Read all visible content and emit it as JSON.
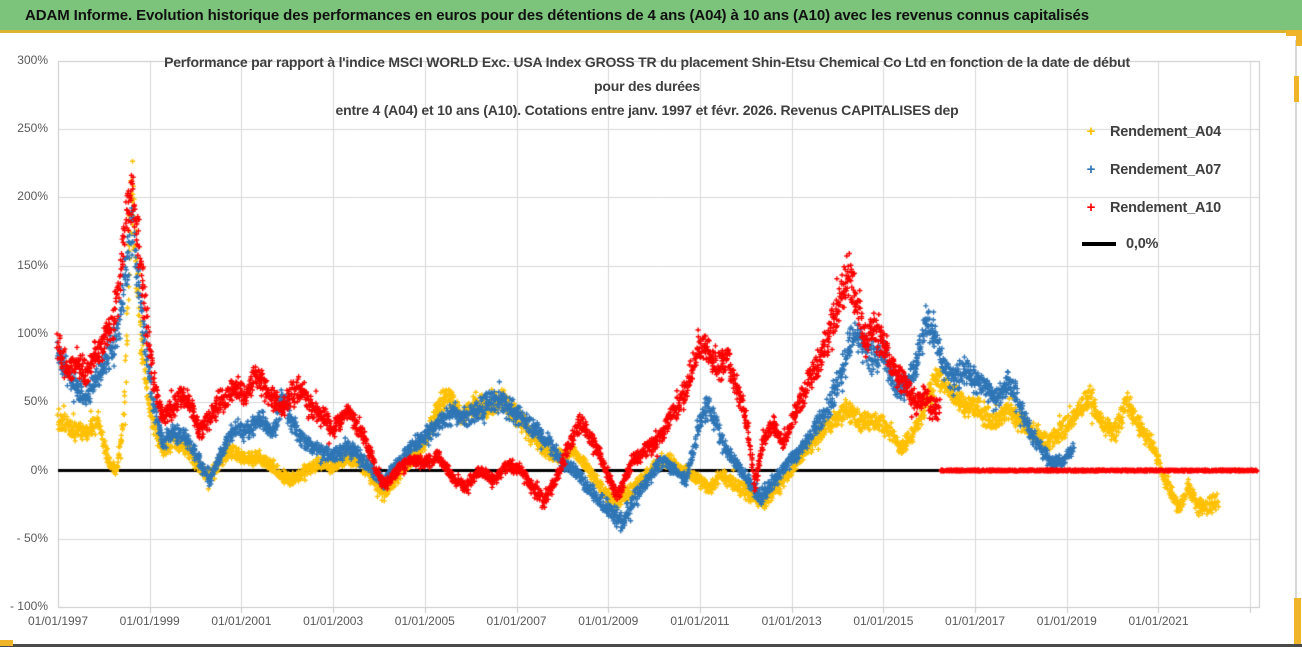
{
  "header": {
    "title": "ADAM Informe. Evolution historique des performances en euros pour des détentions de 4 ans (A04) à 10 ans (A10) avec les revenus connus capitalisés"
  },
  "chart_data": {
    "type": "scatter",
    "title_lines": [
      "Performance par rapport à l'indice MSCI WORLD Exc. USA Index GROSS TR  du placement Shin-Etsu Chemical Co Ltd en fonction de la date de début",
      "pour des durées",
      "entre 4 (A04) et 10 ans (A10). Cotations entre janv. 1997 et févr. 2026. Revenus CAPITALISES dep"
    ],
    "legend": [
      {
        "label": "Rendement_A04",
        "marker": "+",
        "color": "#FFC000"
      },
      {
        "label": "Rendement_A07",
        "marker": "+",
        "color": "#2E75B6"
      },
      {
        "label": "Rendement_A10",
        "marker": "+",
        "color": "#FF0000"
      },
      {
        "label": "0,0%",
        "marker": "line",
        "color": "#000000"
      }
    ],
    "x_axis": {
      "tick_labels": [
        "01/01/1997",
        "01/01/1999",
        "01/01/2001",
        "01/01/2003",
        "01/01/2005",
        "01/01/2007",
        "01/01/2009",
        "01/01/2011",
        "01/01/2013",
        "01/01/2015",
        "01/01/2017",
        "01/01/2019",
        "01/01/2021"
      ],
      "tick_years": [
        1997,
        1999,
        2001,
        2003,
        2005,
        2007,
        2009,
        2011,
        2013,
        2015,
        2017,
        2019,
        2021
      ],
      "range_years": [
        1997.0,
        2023.2
      ],
      "gridlines_every_years": 2
    },
    "y_axis": {
      "tick_labels": [
        "300%",
        "250%",
        "200%",
        "150%",
        "100%",
        "50%",
        "0%",
        "- 50%",
        "- 100%"
      ],
      "tick_values": [
        300,
        250,
        200,
        150,
        100,
        50,
        0,
        -50,
        -100
      ],
      "range_pct": [
        -100,
        300
      ],
      "gridline_step_pct": 50
    },
    "zero_line": {
      "label": "0,0%",
      "color": "#000000",
      "value_pct": 0
    },
    "series": [
      {
        "name": "Rendement_A04",
        "color": "#FFC000",
        "keyframes_year_pct": [
          [
            1997.0,
            38
          ],
          [
            1997.3,
            30
          ],
          [
            1997.6,
            28
          ],
          [
            1997.9,
            35
          ],
          [
            1998.1,
            6
          ],
          [
            1998.3,
            0
          ],
          [
            1998.45,
            40
          ],
          [
            1998.55,
            150
          ],
          [
            1998.62,
            215
          ],
          [
            1998.7,
            150
          ],
          [
            1998.8,
            100
          ],
          [
            1998.95,
            60
          ],
          [
            1999.1,
            30
          ],
          [
            1999.3,
            15
          ],
          [
            1999.5,
            22
          ],
          [
            1999.7,
            18
          ],
          [
            1999.9,
            12
          ],
          [
            2000.1,
            2
          ],
          [
            2000.3,
            -5
          ],
          [
            2000.5,
            5
          ],
          [
            2000.7,
            15
          ],
          [
            2000.9,
            12
          ],
          [
            2001.1,
            8
          ],
          [
            2001.4,
            10
          ],
          [
            2001.7,
            2
          ],
          [
            2001.9,
            -5
          ],
          [
            2002.1,
            -8
          ],
          [
            2002.4,
            0
          ],
          [
            2002.7,
            5
          ],
          [
            2003.0,
            2
          ],
          [
            2003.3,
            10
          ],
          [
            2003.6,
            5
          ],
          [
            2003.9,
            -8
          ],
          [
            2004.1,
            -18
          ],
          [
            2004.4,
            -5
          ],
          [
            2004.7,
            8
          ],
          [
            2005.0,
            20
          ],
          [
            2005.3,
            48
          ],
          [
            2005.5,
            55
          ],
          [
            2005.8,
            40
          ],
          [
            2006.1,
            50
          ],
          [
            2006.4,
            45
          ],
          [
            2006.7,
            52
          ],
          [
            2007.0,
            40
          ],
          [
            2007.3,
            30
          ],
          [
            2007.6,
            15
          ],
          [
            2007.9,
            10
          ],
          [
            2008.2,
            15
          ],
          [
            2008.5,
            5
          ],
          [
            2008.8,
            -10
          ],
          [
            2009.1,
            -22
          ],
          [
            2009.4,
            -18
          ],
          [
            2009.7,
            -8
          ],
          [
            2010.0,
            2
          ],
          [
            2010.3,
            8
          ],
          [
            2010.6,
            2
          ],
          [
            2010.9,
            -5
          ],
          [
            2011.2,
            -12
          ],
          [
            2011.5,
            -5
          ],
          [
            2011.8,
            -10
          ],
          [
            2012.1,
            -18
          ],
          [
            2012.4,
            -22
          ],
          [
            2012.7,
            -12
          ],
          [
            2013.0,
            0
          ],
          [
            2013.3,
            15
          ],
          [
            2013.6,
            25
          ],
          [
            2013.9,
            35
          ],
          [
            2014.2,
            45
          ],
          [
            2014.5,
            35
          ],
          [
            2014.8,
            38
          ],
          [
            2015.1,
            32
          ],
          [
            2015.4,
            15
          ],
          [
            2015.7,
            30
          ],
          [
            2016.0,
            55
          ],
          [
            2016.2,
            70
          ],
          [
            2016.5,
            55
          ],
          [
            2016.8,
            48
          ],
          [
            2017.1,
            45
          ],
          [
            2017.4,
            35
          ],
          [
            2017.7,
            45
          ],
          [
            2018.0,
            35
          ],
          [
            2018.3,
            28
          ],
          [
            2018.6,
            20
          ],
          [
            2018.9,
            30
          ],
          [
            2019.2,
            40
          ],
          [
            2019.5,
            55
          ],
          [
            2019.8,
            32
          ],
          [
            2020.05,
            28
          ],
          [
            2020.3,
            50
          ],
          [
            2020.6,
            30
          ],
          [
            2020.85,
            20
          ],
          [
            2021.05,
            2
          ],
          [
            2021.25,
            -15
          ],
          [
            2021.45,
            -28
          ],
          [
            2021.65,
            -12
          ],
          [
            2021.9,
            -28
          ],
          [
            2022.1,
            -25
          ],
          [
            2022.3,
            -22
          ]
        ]
      },
      {
        "name": "Rendement_A07",
        "color": "#2E75B6",
        "keyframes_year_pct": [
          [
            1997.0,
            85
          ],
          [
            1997.3,
            65
          ],
          [
            1997.6,
            55
          ],
          [
            1997.9,
            70
          ],
          [
            1998.1,
            85
          ],
          [
            1998.3,
            100
          ],
          [
            1998.5,
            150
          ],
          [
            1998.62,
            180
          ],
          [
            1998.75,
            140
          ],
          [
            1998.9,
            95
          ],
          [
            1999.1,
            45
          ],
          [
            1999.3,
            20
          ],
          [
            1999.5,
            28
          ],
          [
            1999.7,
            25
          ],
          [
            1999.9,
            18
          ],
          [
            2000.1,
            5
          ],
          [
            2000.3,
            -8
          ],
          [
            2000.5,
            8
          ],
          [
            2000.7,
            22
          ],
          [
            2000.9,
            30
          ],
          [
            2001.1,
            28
          ],
          [
            2001.4,
            38
          ],
          [
            2001.7,
            28
          ],
          [
            2001.9,
            55
          ],
          [
            2002.1,
            35
          ],
          [
            2002.4,
            20
          ],
          [
            2002.7,
            15
          ],
          [
            2003.0,
            10
          ],
          [
            2003.3,
            18
          ],
          [
            2003.6,
            10
          ],
          [
            2003.9,
            -2
          ],
          [
            2004.1,
            -8
          ],
          [
            2004.4,
            5
          ],
          [
            2004.7,
            18
          ],
          [
            2005.0,
            25
          ],
          [
            2005.3,
            35
          ],
          [
            2005.6,
            42
          ],
          [
            2005.9,
            38
          ],
          [
            2006.2,
            45
          ],
          [
            2006.5,
            52
          ],
          [
            2006.8,
            48
          ],
          [
            2007.1,
            38
          ],
          [
            2007.4,
            30
          ],
          [
            2007.7,
            20
          ],
          [
            2008.0,
            5
          ],
          [
            2008.3,
            0
          ],
          [
            2008.6,
            -15
          ],
          [
            2008.9,
            -25
          ],
          [
            2009.3,
            -38
          ],
          [
            2009.6,
            -18
          ],
          [
            2009.9,
            -5
          ],
          [
            2010.2,
            8
          ],
          [
            2010.5,
            -2
          ],
          [
            2010.7,
            -8
          ],
          [
            2011.0,
            35
          ],
          [
            2011.2,
            48
          ],
          [
            2011.5,
            20
          ],
          [
            2011.7,
            8
          ],
          [
            2012.0,
            -5
          ],
          [
            2012.3,
            -20
          ],
          [
            2012.6,
            -8
          ],
          [
            2012.9,
            5
          ],
          [
            2013.2,
            15
          ],
          [
            2013.5,
            30
          ],
          [
            2013.8,
            45
          ],
          [
            2014.05,
            68
          ],
          [
            2014.3,
            95
          ],
          [
            2014.45,
            100
          ],
          [
            2014.7,
            80
          ],
          [
            2015.0,
            85
          ],
          [
            2015.25,
            62
          ],
          [
            2015.5,
            60
          ],
          [
            2015.7,
            75
          ],
          [
            2015.95,
            112
          ],
          [
            2016.1,
            100
          ],
          [
            2016.3,
            80
          ],
          [
            2016.5,
            65
          ],
          [
            2016.75,
            75
          ],
          [
            2017.0,
            65
          ],
          [
            2017.2,
            60
          ],
          [
            2017.45,
            50
          ],
          [
            2017.7,
            65
          ],
          [
            2017.9,
            55
          ],
          [
            2018.1,
            35
          ],
          [
            2018.4,
            18
          ],
          [
            2018.7,
            5
          ],
          [
            2018.9,
            8
          ],
          [
            2019.15,
            15
          ]
        ]
      },
      {
        "name": "Rendement_A10",
        "color": "#FF0000",
        "zero_tail_years": [
          2016.25,
          2023.15
        ],
        "keyframes_year_pct": [
          [
            1997.0,
            90
          ],
          [
            1997.2,
            72
          ],
          [
            1997.4,
            80
          ],
          [
            1997.6,
            68
          ],
          [
            1997.8,
            85
          ],
          [
            1998.0,
            95
          ],
          [
            1998.2,
            110
          ],
          [
            1998.35,
            140
          ],
          [
            1998.5,
            185
          ],
          [
            1998.62,
            205
          ],
          [
            1998.75,
            170
          ],
          [
            1998.9,
            120
          ],
          [
            1999.1,
            60
          ],
          [
            1999.3,
            38
          ],
          [
            1999.5,
            45
          ],
          [
            1999.7,
            55
          ],
          [
            1999.9,
            48
          ],
          [
            2000.1,
            28
          ],
          [
            2000.3,
            38
          ],
          [
            2000.5,
            50
          ],
          [
            2000.7,
            55
          ],
          [
            2000.9,
            62
          ],
          [
            2001.1,
            55
          ],
          [
            2001.35,
            72
          ],
          [
            2001.6,
            55
          ],
          [
            2001.9,
            45
          ],
          [
            2002.1,
            55
          ],
          [
            2002.3,
            60
          ],
          [
            2002.5,
            48
          ],
          [
            2002.8,
            38
          ],
          [
            2003.0,
            28
          ],
          [
            2003.3,
            45
          ],
          [
            2003.6,
            30
          ],
          [
            2003.9,
            5
          ],
          [
            2004.1,
            -12
          ],
          [
            2004.4,
            0
          ],
          [
            2004.7,
            8
          ],
          [
            2005.0,
            5
          ],
          [
            2005.3,
            10
          ],
          [
            2005.6,
            -5
          ],
          [
            2005.9,
            -12
          ],
          [
            2006.2,
            0
          ],
          [
            2006.5,
            -8
          ],
          [
            2006.8,
            5
          ],
          [
            2007.1,
            0
          ],
          [
            2007.4,
            -15
          ],
          [
            2007.6,
            -22
          ],
          [
            2007.9,
            -5
          ],
          [
            2008.1,
            15
          ],
          [
            2008.4,
            35
          ],
          [
            2008.7,
            20
          ],
          [
            2009.0,
            -5
          ],
          [
            2009.2,
            -18
          ],
          [
            2009.5,
            5
          ],
          [
            2009.8,
            15
          ],
          [
            2010.1,
            22
          ],
          [
            2010.4,
            40
          ],
          [
            2010.7,
            60
          ],
          [
            2011.0,
            92
          ],
          [
            2011.2,
            85
          ],
          [
            2011.4,
            75
          ],
          [
            2011.6,
            82
          ],
          [
            2011.8,
            60
          ],
          [
            2012.0,
            40
          ],
          [
            2012.2,
            -10
          ],
          [
            2012.4,
            25
          ],
          [
            2012.6,
            35
          ],
          [
            2012.8,
            20
          ],
          [
            2013.0,
            35
          ],
          [
            2013.3,
            60
          ],
          [
            2013.6,
            80
          ],
          [
            2013.9,
            110
          ],
          [
            2014.1,
            130
          ],
          [
            2014.25,
            145
          ],
          [
            2014.45,
            120
          ],
          [
            2014.6,
            95
          ],
          [
            2014.8,
            105
          ],
          [
            2015.1,
            85
          ],
          [
            2015.3,
            70
          ],
          [
            2015.5,
            62
          ],
          [
            2015.7,
            48
          ],
          [
            2015.9,
            55
          ],
          [
            2016.1,
            45
          ],
          [
            2016.22,
            45
          ]
        ]
      }
    ]
  },
  "colors": {
    "header_bg": "#7CC47C",
    "header_underline": "#D9B52F",
    "accent_gold": "#EFB428",
    "grid": "#D9D9D9",
    "plot_border": "#C9C9C9",
    "axis_text": "#595959",
    "title_text": "#3F3F3F",
    "zero_line": "#000000",
    "bottom_edge": "#4A4A4A"
  }
}
